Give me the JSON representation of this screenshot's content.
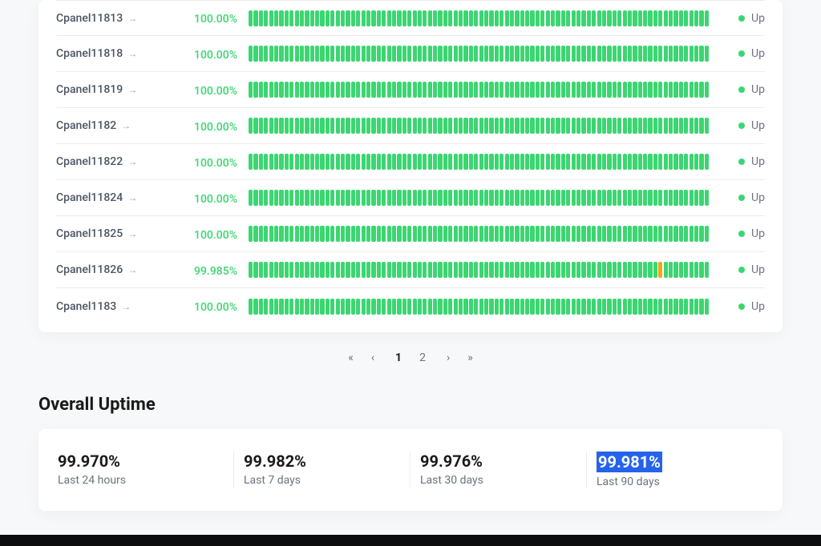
{
  "colors": {
    "up": "#3bd671",
    "partial": "#ff9f1a",
    "text_muted": "#6b7280",
    "text_dark": "#1a1a1a",
    "border": "#e9ecef",
    "highlight_bg": "#2563eb",
    "page_bg": "#f7f8fa",
    "card_bg": "#ffffff"
  },
  "bar_count": 90,
  "servers": [
    {
      "name": "Cpanel11813",
      "pct": "100.00%",
      "status": "Up",
      "partial_indices": []
    },
    {
      "name": "Cpanel11818",
      "pct": "100.00%",
      "status": "Up",
      "partial_indices": []
    },
    {
      "name": "Cpanel11819",
      "pct": "100.00%",
      "status": "Up",
      "partial_indices": []
    },
    {
      "name": "Cpanel1182",
      "pct": "100.00%",
      "status": "Up",
      "partial_indices": []
    },
    {
      "name": "Cpanel11822",
      "pct": "100.00%",
      "status": "Up",
      "partial_indices": []
    },
    {
      "name": "Cpanel11824",
      "pct": "100.00%",
      "status": "Up",
      "partial_indices": []
    },
    {
      "name": "Cpanel11825",
      "pct": "100.00%",
      "status": "Up",
      "partial_indices": []
    },
    {
      "name": "Cpanel11826",
      "pct": "99.985%",
      "status": "Up",
      "partial_indices": [
        80
      ]
    },
    {
      "name": "Cpanel1183",
      "pct": "100.00%",
      "status": "Up",
      "partial_indices": []
    }
  ],
  "pagination": {
    "first": "«",
    "prev": "‹",
    "pages": [
      "1",
      "2"
    ],
    "current": "1",
    "next": "›",
    "last": "»"
  },
  "overall_title": "Overall Uptime",
  "overall": [
    {
      "value": "99.970%",
      "label": "Last 24 hours",
      "highlight": false
    },
    {
      "value": "99.982%",
      "label": "Last 7 days",
      "highlight": false
    },
    {
      "value": "99.976%",
      "label": "Last 30 days",
      "highlight": false
    },
    {
      "value": "99.981%",
      "label": "Last 90 days",
      "highlight": true
    }
  ]
}
